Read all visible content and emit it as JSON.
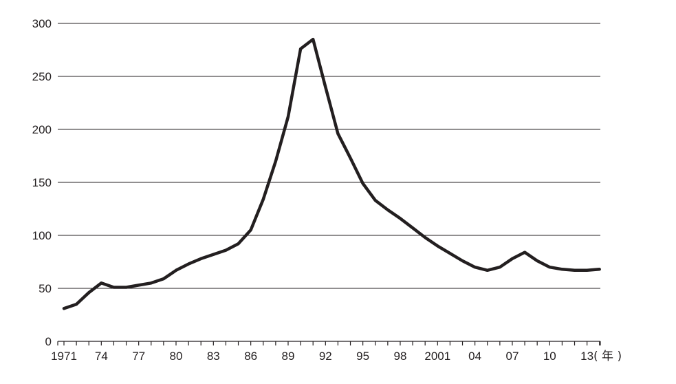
{
  "chart_data": {
    "type": "line",
    "title": "",
    "xlabel": "",
    "ylabel": "",
    "x_unit": "( 年 )",
    "ylim": [
      0,
      300
    ],
    "y_ticks": [
      0,
      50,
      100,
      150,
      200,
      250,
      300
    ],
    "y_tick_labels": [
      "0",
      "50",
      "100",
      "150",
      "200",
      "250",
      "300"
    ],
    "x_ticks": [
      1971,
      1974,
      1977,
      1980,
      1983,
      1986,
      1989,
      1992,
      1995,
      1998,
      2001,
      2004,
      2007,
      2010,
      2013
    ],
    "x_tick_labels": [
      "1971",
      "74",
      "77",
      "80",
      "83",
      "86",
      "89",
      "92",
      "95",
      "98",
      "2001",
      "04",
      "07",
      "10",
      "13"
    ],
    "grid": "horizontal",
    "line_color": "#231f20",
    "series": [
      {
        "x": [
          1971,
          1972,
          1973,
          1974,
          1975,
          1976,
          1977,
          1978,
          1979,
          1980,
          1981,
          1982,
          1983,
          1984,
          1985,
          1986,
          1987,
          1988,
          1989,
          1990,
          1991,
          1992,
          1993,
          1994,
          1995,
          1996,
          1997,
          1998,
          1999,
          2000,
          2001,
          2002,
          2003,
          2004,
          2005,
          2006,
          2007,
          2008,
          2009,
          2010,
          2011,
          2012,
          2013,
          2014
        ],
        "values": [
          31,
          35,
          46,
          55,
          51,
          51,
          53,
          55,
          59,
          67,
          73,
          78,
          82,
          86,
          92,
          105,
          134,
          170,
          212,
          276,
          285,
          240,
          196,
          173,
          149,
          133,
          124,
          116,
          107,
          98,
          90,
          83,
          76,
          70,
          67,
          70,
          78,
          84,
          76,
          70,
          68,
          67,
          67,
          68
        ]
      }
    ]
  }
}
